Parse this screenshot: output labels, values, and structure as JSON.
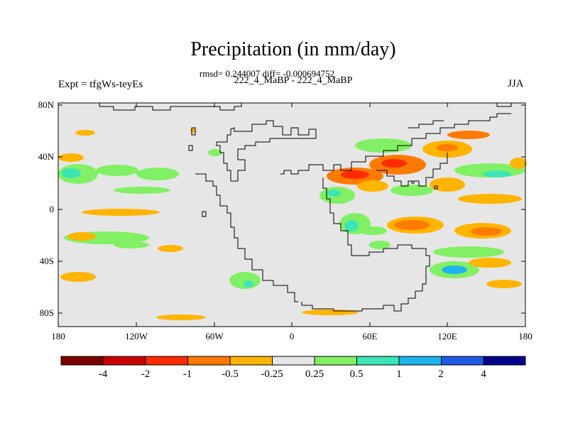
{
  "title": "Precipitation (in mm/day)",
  "stats": "rmsd= 0.244007 diff= -0.000694752",
  "subtitle": "222_4_MaBP - 222_4_MaBP",
  "expt": "Expt = tfgWs-teyEs",
  "season": "JJA",
  "map": {
    "background_color": "#e6e6e6",
    "y_ticks": [
      "80N",
      "40N",
      "0",
      "40S",
      "80S"
    ],
    "x_ticks": [
      "180",
      "120W",
      "60W",
      "0",
      "60E",
      "120E",
      "180"
    ]
  },
  "colorbar": {
    "colors": [
      "#7a0000",
      "#c80000",
      "#ff2a00",
      "#ff7a00",
      "#ffb400",
      "#e6e6e6",
      "#82f064",
      "#3ce6b4",
      "#1eb4f0",
      "#1e5ae6",
      "#00008c"
    ],
    "labels": [
      "-4",
      "-2",
      "-1",
      "-0.5",
      "-0.25",
      "0.25",
      "0.5",
      "1",
      "2",
      "4"
    ]
  }
}
